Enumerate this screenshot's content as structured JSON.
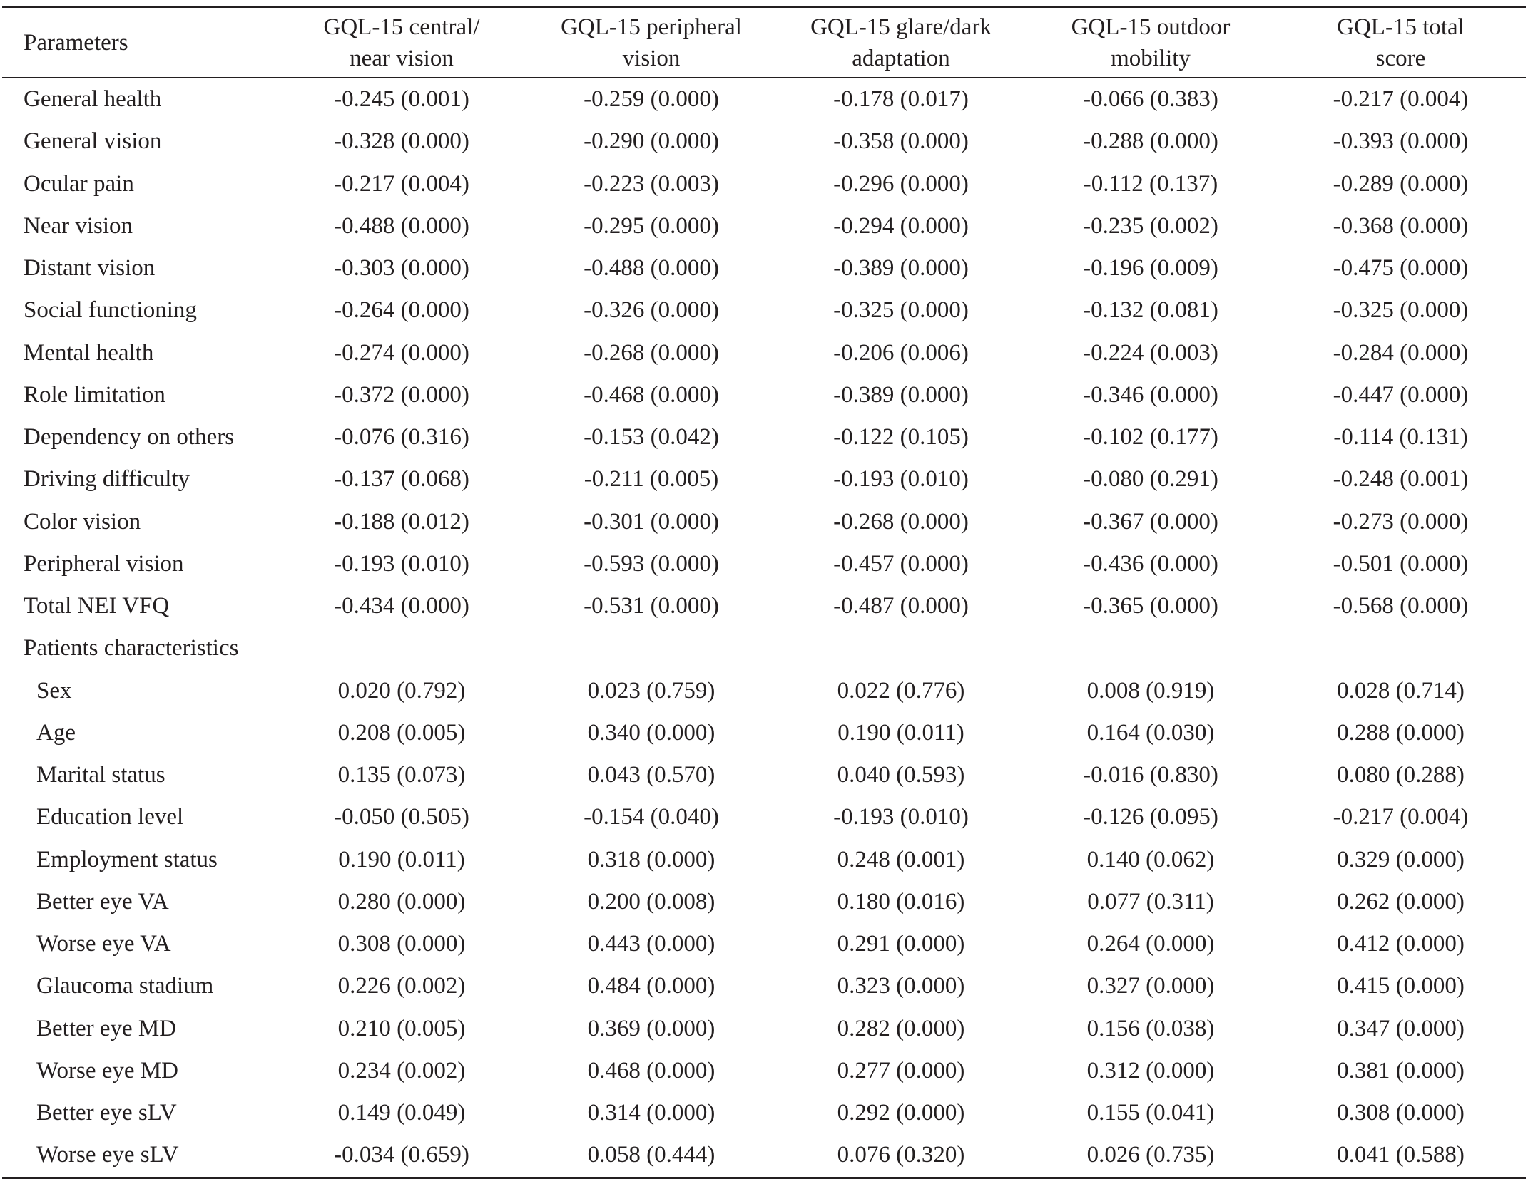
{
  "table": {
    "headers": [
      [
        "Parameters"
      ],
      [
        "GQL-15 central/",
        "near vision"
      ],
      [
        "GQL-15 peripheral",
        "vision"
      ],
      [
        "GQL-15 glare/dark",
        "adaptation"
      ],
      [
        "GQL-15 outdoor",
        "mobility"
      ],
      [
        "GQL-15 total",
        "score"
      ]
    ],
    "rows": [
      {
        "label": "General health",
        "sub": false,
        "cells": [
          "-0.245 (0.001)",
          "-0.259 (0.000)",
          "-0.178 (0.017)",
          "-0.066 (0.383)",
          "-0.217 (0.004)"
        ]
      },
      {
        "label": "General vision",
        "sub": false,
        "cells": [
          "-0.328 (0.000)",
          "-0.290 (0.000)",
          "-0.358 (0.000)",
          "-0.288 (0.000)",
          "-0.393 (0.000)"
        ]
      },
      {
        "label": "Ocular pain",
        "sub": false,
        "cells": [
          "-0.217 (0.004)",
          "-0.223 (0.003)",
          "-0.296 (0.000)",
          "-0.112 (0.137)",
          "-0.289 (0.000)"
        ]
      },
      {
        "label": "Near vision",
        "sub": false,
        "cells": [
          "-0.488 (0.000)",
          "-0.295 (0.000)",
          "-0.294 (0.000)",
          "-0.235 (0.002)",
          "-0.368 (0.000)"
        ]
      },
      {
        "label": "Distant vision",
        "sub": false,
        "cells": [
          "-0.303 (0.000)",
          "-0.488 (0.000)",
          "-0.389 (0.000)",
          "-0.196 (0.009)",
          "-0.475 (0.000)"
        ]
      },
      {
        "label": "Social functioning",
        "sub": false,
        "cells": [
          "-0.264 (0.000)",
          "-0.326 (0.000)",
          "-0.325 (0.000)",
          "-0.132 (0.081)",
          "-0.325 (0.000)"
        ]
      },
      {
        "label": "Mental health",
        "sub": false,
        "cells": [
          "-0.274 (0.000)",
          "-0.268 (0.000)",
          "-0.206 (0.006)",
          "-0.224 (0.003)",
          "-0.284 (0.000)"
        ]
      },
      {
        "label": "Role limitation",
        "sub": false,
        "cells": [
          "-0.372 (0.000)",
          "-0.468 (0.000)",
          "-0.389 (0.000)",
          "-0.346 (0.000)",
          "-0.447 (0.000)"
        ]
      },
      {
        "label": "Dependency on others",
        "sub": false,
        "cells": [
          "-0.076 (0.316)",
          "-0.153 (0.042)",
          "-0.122 (0.105)",
          "-0.102 (0.177)",
          "-0.114 (0.131)"
        ]
      },
      {
        "label": "Driving difficulty",
        "sub": false,
        "cells": [
          "-0.137 (0.068)",
          "-0.211 (0.005)",
          "-0.193 (0.010)",
          "-0.080 (0.291)",
          "-0.248 (0.001)"
        ]
      },
      {
        "label": "Color vision",
        "sub": false,
        "cells": [
          "-0.188 (0.012)",
          "-0.301 (0.000)",
          "-0.268 (0.000)",
          "-0.367 (0.000)",
          "-0.273 (0.000)"
        ]
      },
      {
        "label": "Peripheral vision",
        "sub": false,
        "cells": [
          "-0.193 (0.010)",
          "-0.593 (0.000)",
          "-0.457 (0.000)",
          "-0.436 (0.000)",
          "-0.501 (0.000)"
        ]
      },
      {
        "label": "Total NEI VFQ",
        "sub": false,
        "cells": [
          "-0.434 (0.000)",
          "-0.531 (0.000)",
          "-0.487 (0.000)",
          "-0.365 (0.000)",
          "-0.568 (0.000)"
        ]
      },
      {
        "label": "Patients characteristics",
        "sub": false,
        "cells": [
          "",
          "",
          "",
          "",
          ""
        ]
      },
      {
        "label": "Sex",
        "sub": true,
        "cells": [
          "0.020 (0.792)",
          "0.023 (0.759)",
          "0.022 (0.776)",
          "0.008 (0.919)",
          "0.028 (0.714)"
        ]
      },
      {
        "label": "Age",
        "sub": true,
        "cells": [
          "0.208 (0.005)",
          "0.340 (0.000)",
          "0.190 (0.011)",
          "0.164 (0.030)",
          "0.288 (0.000)"
        ]
      },
      {
        "label": "Marital status",
        "sub": true,
        "cells": [
          "0.135 (0.073)",
          "0.043 (0.570)",
          "0.040 (0.593)",
          "-0.016 (0.830)",
          "0.080 (0.288)"
        ]
      },
      {
        "label": "Education level",
        "sub": true,
        "cells": [
          "-0.050 (0.505)",
          "-0.154 (0.040)",
          "-0.193 (0.010)",
          "-0.126 (0.095)",
          "-0.217 (0.004)"
        ]
      },
      {
        "label": "Employment status",
        "sub": true,
        "cells": [
          "0.190 (0.011)",
          "0.318 (0.000)",
          "0.248 (0.001)",
          "0.140 (0.062)",
          "0.329 (0.000)"
        ]
      },
      {
        "label": "Better eye VA",
        "sub": true,
        "cells": [
          "0.280 (0.000)",
          "0.200 (0.008)",
          "0.180 (0.016)",
          "0.077 (0.311)",
          "0.262 (0.000)"
        ]
      },
      {
        "label": "Worse eye VA",
        "sub": true,
        "cells": [
          "0.308 (0.000)",
          "0.443 (0.000)",
          "0.291 (0.000)",
          "0.264 (0.000)",
          "0.412 (0.000)"
        ]
      },
      {
        "label": "Glaucoma stadium",
        "sub": true,
        "cells": [
          "0.226 (0.002)",
          "0.484 (0.000)",
          "0.323 (0.000)",
          "0.327 (0.000)",
          "0.415 (0.000)"
        ]
      },
      {
        "label": "Better eye MD",
        "sub": true,
        "cells": [
          "0.210 (0.005)",
          "0.369 (0.000)",
          "0.282 (0.000)",
          "0.156 (0.038)",
          "0.347 (0.000)"
        ]
      },
      {
        "label": "Worse eye MD",
        "sub": true,
        "cells": [
          "0.234 (0.002)",
          "0.468 (0.000)",
          "0.277 (0.000)",
          "0.312 (0.000)",
          "0.381 (0.000)"
        ]
      },
      {
        "label": "Better eye sLV",
        "sub": true,
        "cells": [
          "0.149 (0.049)",
          "0.314 (0.000)",
          "0.292 (0.000)",
          "0.155 (0.041)",
          "0.308 (0.000)"
        ]
      },
      {
        "label": "Worse eye sLV",
        "sub": true,
        "cells": [
          "-0.034 (0.659)",
          "0.058 (0.444)",
          "0.076 (0.320)",
          "0.026 (0.735)",
          "0.041 (0.588)"
        ]
      }
    ]
  }
}
